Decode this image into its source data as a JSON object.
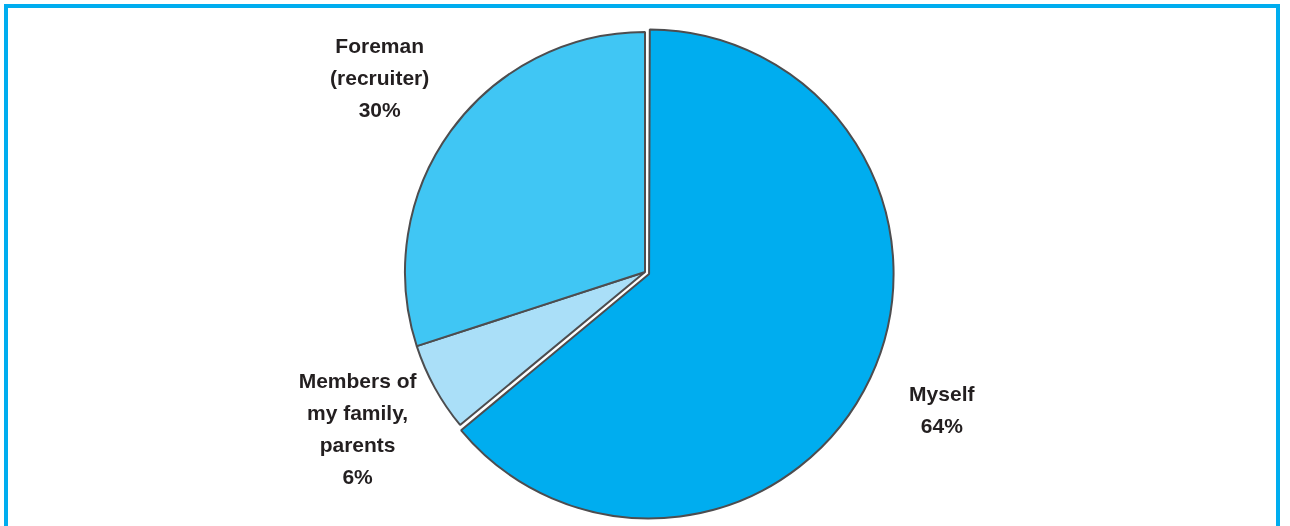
{
  "chart_data": {
    "type": "pie",
    "categories": [
      "Myself",
      "Members of my family, parents",
      "Foreman (recruiter)"
    ],
    "values": [
      64,
      6,
      30
    ],
    "value_labels": [
      "64%",
      "6%",
      "30%"
    ],
    "colors": [
      "#00adef",
      "#aadff8",
      "#40c6f4"
    ],
    "legend": false
  }
}
